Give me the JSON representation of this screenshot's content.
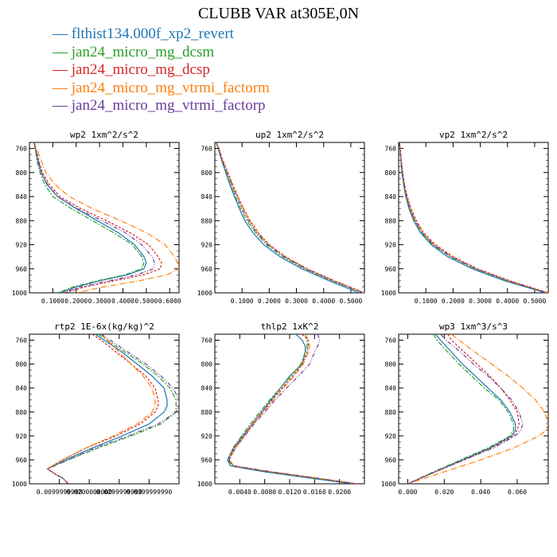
{
  "title": "CLUBB VAR at305E,0N",
  "legend": [
    {
      "marker": "—",
      "label": "flthist134.000f_xp2_revert",
      "color": "#1f77b4"
    },
    {
      "marker": "—",
      "label": "jan24_micro_mg_dcsm",
      "color": "#2ca02c"
    },
    {
      "marker": "—",
      "label": "jan24_micro_mg_dcsp",
      "color": "#d62728"
    },
    {
      "marker": "—",
      "label": "jan24_micro_mg_vtrmi_factorm",
      "color": "#ff7f0e"
    },
    {
      "marker": "—",
      "label": "jan24_micro_mg_vtrmi_factorp",
      "color": "#6a3d9a"
    }
  ],
  "chart_data": [
    {
      "type": "line",
      "title": "wp2  1xm^2/s^2",
      "ylim": [
        1000,
        750
      ],
      "yticks": [
        "760",
        "800",
        "840",
        "880",
        "920",
        "960",
        "1000"
      ],
      "xlim": [
        0,
        0.64
      ],
      "xticks": [
        "0.1000",
        "0.2000",
        "0.3000",
        "0.4000",
        "0.5000",
        "0.6000"
      ],
      "xtick_values": [
        0.1,
        0.2,
        0.3,
        0.4,
        0.5,
        0.6
      ],
      "y": [
        750,
        760,
        780,
        800,
        820,
        840,
        860,
        880,
        900,
        920,
        940,
        950,
        960,
        970,
        980,
        990,
        1000
      ],
      "series": [
        {
          "values": [
            0.02,
            0.025,
            0.035,
            0.05,
            0.075,
            0.12,
            0.2,
            0.29,
            0.38,
            0.45,
            0.49,
            0.5,
            0.49,
            0.42,
            0.3,
            0.2,
            0.13
          ]
        },
        {
          "values": [
            0.02,
            0.025,
            0.032,
            0.045,
            0.065,
            0.1,
            0.18,
            0.27,
            0.36,
            0.44,
            0.48,
            0.49,
            0.48,
            0.41,
            0.29,
            0.19,
            0.12
          ]
        },
        {
          "values": [
            0.02,
            0.027,
            0.04,
            0.055,
            0.085,
            0.13,
            0.22,
            0.33,
            0.43,
            0.51,
            0.55,
            0.565,
            0.56,
            0.49,
            0.36,
            0.24,
            0.15
          ]
        },
        {
          "values": [
            0.02,
            0.03,
            0.05,
            0.07,
            0.11,
            0.17,
            0.27,
            0.39,
            0.5,
            0.58,
            0.62,
            0.635,
            0.64,
            0.59,
            0.47,
            0.32,
            0.2
          ]
        },
        {
          "values": [
            0.02,
            0.025,
            0.038,
            0.05,
            0.078,
            0.12,
            0.205,
            0.31,
            0.41,
            0.48,
            0.525,
            0.535,
            0.53,
            0.46,
            0.34,
            0.22,
            0.14
          ]
        }
      ]
    },
    {
      "type": "line",
      "title": "up2  1xm^2/s^2",
      "ylim": [
        1000,
        750
      ],
      "yticks": [
        "760",
        "800",
        "840",
        "880",
        "920",
        "960",
        "1000"
      ],
      "xlim": [
        0,
        0.55
      ],
      "xticks": [
        "0.1000",
        "0.2000",
        "0.3000",
        "0.4000",
        "0.5000"
      ],
      "xtick_values": [
        0.1,
        0.2,
        0.3,
        0.4,
        0.5
      ],
      "y": [
        750,
        760,
        780,
        800,
        820,
        840,
        860,
        880,
        900,
        920,
        940,
        960,
        980,
        1000
      ],
      "series": [
        {
          "values": [
            0.005,
            0.012,
            0.025,
            0.04,
            0.055,
            0.072,
            0.09,
            0.11,
            0.14,
            0.18,
            0.24,
            0.32,
            0.42,
            0.53
          ]
        },
        {
          "values": [
            0.005,
            0.012,
            0.026,
            0.042,
            0.058,
            0.075,
            0.095,
            0.118,
            0.15,
            0.19,
            0.25,
            0.33,
            0.43,
            0.545
          ]
        },
        {
          "values": [
            0.005,
            0.015,
            0.03,
            0.048,
            0.066,
            0.085,
            0.106,
            0.13,
            0.16,
            0.2,
            0.26,
            0.34,
            0.44,
            0.55
          ]
        },
        {
          "values": [
            0.005,
            0.014,
            0.028,
            0.046,
            0.064,
            0.083,
            0.104,
            0.128,
            0.158,
            0.198,
            0.258,
            0.338,
            0.438,
            0.548
          ]
        },
        {
          "values": [
            0.005,
            0.013,
            0.027,
            0.044,
            0.062,
            0.08,
            0.1,
            0.124,
            0.154,
            0.195,
            0.255,
            0.335,
            0.435,
            0.545
          ]
        }
      ]
    },
    {
      "type": "line",
      "title": "vp2  1xm^2/s^2",
      "ylim": [
        1000,
        750
      ],
      "yticks": [
        "760",
        "800",
        "840",
        "880",
        "920",
        "960",
        "1000"
      ],
      "xlim": [
        0,
        0.55
      ],
      "xticks": [
        "0.1000",
        "0.2000",
        "0.3000",
        "0.4000",
        "0.5000"
      ],
      "xtick_values": [
        0.1,
        0.2,
        0.3,
        0.4,
        0.5
      ],
      "y": [
        750,
        760,
        780,
        800,
        820,
        840,
        860,
        880,
        900,
        920,
        940,
        960,
        980,
        1000
      ],
      "series": [
        {
          "values": [
            0.003,
            0.005,
            0.008,
            0.012,
            0.018,
            0.026,
            0.038,
            0.055,
            0.08,
            0.12,
            0.18,
            0.27,
            0.39,
            0.54
          ]
        },
        {
          "values": [
            0.003,
            0.005,
            0.008,
            0.013,
            0.019,
            0.028,
            0.04,
            0.058,
            0.083,
            0.125,
            0.19,
            0.28,
            0.4,
            0.545
          ]
        },
        {
          "values": [
            0.003,
            0.006,
            0.01,
            0.015,
            0.022,
            0.032,
            0.046,
            0.065,
            0.092,
            0.135,
            0.2,
            0.29,
            0.41,
            0.55
          ]
        },
        {
          "values": [
            0.003,
            0.006,
            0.009,
            0.014,
            0.021,
            0.03,
            0.044,
            0.062,
            0.089,
            0.13,
            0.195,
            0.285,
            0.405,
            0.548
          ]
        },
        {
          "values": [
            0.003,
            0.005,
            0.009,
            0.014,
            0.02,
            0.029,
            0.042,
            0.06,
            0.087,
            0.128,
            0.193,
            0.283,
            0.403,
            0.546
          ]
        }
      ]
    },
    {
      "type": "line",
      "title": "rtp2  1E-6x(kg/kg)^2",
      "ylim": [
        1000,
        750
      ],
      "yticks": [
        "760",
        "800",
        "840",
        "880",
        "920",
        "960",
        "1000"
      ],
      "xlim": [
        0,
        0.05
      ],
      "xticks": [
        "0.0099999998",
        "0.0200000000",
        "0.0299999990",
        "0.0399999990"
      ],
      "xtick_values": [
        0.01,
        0.02,
        0.03,
        0.04
      ],
      "y": [
        750,
        760,
        780,
        800,
        820,
        840,
        860,
        870,
        880,
        900,
        920,
        940,
        960,
        975,
        985,
        990,
        1000
      ],
      "series": [
        {
          "values": [
            0.022,
            0.025,
            0.031,
            0.036,
            0.041,
            0.045,
            0.046,
            0.046,
            0.045,
            0.04,
            0.031,
            0.021,
            0.012,
            0.006,
            0.009,
            0.011,
            0.013
          ]
        },
        {
          "values": [
            0.023,
            0.026,
            0.032,
            0.038,
            0.043,
            0.047,
            0.049,
            0.049,
            0.049,
            0.044,
            0.034,
            0.023,
            0.013,
            0.006,
            0.009,
            0.011,
            0.013
          ]
        },
        {
          "values": [
            0.021,
            0.024,
            0.029,
            0.034,
            0.039,
            0.042,
            0.043,
            0.043,
            0.042,
            0.037,
            0.029,
            0.019,
            0.011,
            0.006,
            0.009,
            0.011,
            0.013
          ]
        },
        {
          "values": [
            0.024,
            0.026,
            0.03,
            0.034,
            0.038,
            0.041,
            0.042,
            0.042,
            0.041,
            0.036,
            0.028,
            0.019,
            0.011,
            0.006,
            0.009,
            0.011,
            0.013
          ]
        },
        {
          "values": [
            0.024,
            0.027,
            0.033,
            0.039,
            0.044,
            0.048,
            0.05,
            0.05,
            0.049,
            0.043,
            0.033,
            0.022,
            0.013,
            0.006,
            0.009,
            0.011,
            0.013
          ]
        }
      ]
    },
    {
      "type": "line",
      "title": "thlp2  1xK^2",
      "ylim": [
        1000,
        750
      ],
      "yticks": [
        "760",
        "800",
        "840",
        "880",
        "920",
        "960",
        "1000"
      ],
      "xlim": [
        0,
        0.024
      ],
      "xticks": [
        "0.0040",
        "0.0080",
        "0.0120",
        "0.0160",
        "0.0200"
      ],
      "xtick_values": [
        0.004,
        0.008,
        0.012,
        0.016,
        0.02
      ],
      "y": [
        750,
        760,
        770,
        780,
        800,
        820,
        840,
        860,
        880,
        900,
        920,
        940,
        960,
        970,
        980,
        990,
        1000
      ],
      "series": [
        {
          "values": [
            0.013,
            0.014,
            0.0145,
            0.0145,
            0.014,
            0.012,
            0.0105,
            0.009,
            0.0075,
            0.006,
            0.0045,
            0.003,
            0.002,
            0.0025,
            0.008,
            0.015,
            0.022
          ]
        },
        {
          "values": [
            0.0145,
            0.0148,
            0.0148,
            0.0145,
            0.0138,
            0.0122,
            0.0105,
            0.0088,
            0.0072,
            0.0057,
            0.0043,
            0.0029,
            0.0021,
            0.0028,
            0.0085,
            0.0155,
            0.0225
          ]
        },
        {
          "values": [
            0.014,
            0.015,
            0.015,
            0.0148,
            0.014,
            0.0125,
            0.0108,
            0.0092,
            0.0076,
            0.006,
            0.0046,
            0.0031,
            0.0022,
            0.003,
            0.009,
            0.016,
            0.0228
          ]
        },
        {
          "values": [
            0.0145,
            0.015,
            0.0152,
            0.015,
            0.0142,
            0.0127,
            0.011,
            0.0094,
            0.0078,
            0.0062,
            0.0048,
            0.0033,
            0.0023,
            0.0031,
            0.0092,
            0.0162,
            0.023
          ]
        },
        {
          "values": [
            0.0165,
            0.0168,
            0.0165,
            0.016,
            0.0152,
            0.0134,
            0.0115,
            0.0097,
            0.008,
            0.0063,
            0.0048,
            0.0033,
            0.0023,
            0.003,
            0.009,
            0.016,
            0.0228
          ]
        }
      ]
    },
    {
      "type": "line",
      "title": "wp3  1xm^3/s^3",
      "ylim": [
        1000,
        750
      ],
      "yticks": [
        "760",
        "800",
        "840",
        "880",
        "920",
        "960",
        "1000"
      ],
      "xlim": [
        -0.005,
        0.077
      ],
      "xticks": [
        "0.000",
        "0.020",
        "0.040",
        "0.060"
      ],
      "xtick_values": [
        0,
        0.02,
        0.04,
        0.06
      ],
      "y": [
        750,
        760,
        780,
        800,
        820,
        840,
        860,
        880,
        900,
        910,
        920,
        940,
        960,
        980,
        1000
      ],
      "series": [
        {
          "values": [
            0.015,
            0.018,
            0.024,
            0.03,
            0.037,
            0.044,
            0.051,
            0.056,
            0.059,
            0.059,
            0.057,
            0.045,
            0.03,
            0.015,
            0.0
          ]
        },
        {
          "values": [
            0.014,
            0.016,
            0.022,
            0.028,
            0.035,
            0.042,
            0.05,
            0.055,
            0.058,
            0.058,
            0.056,
            0.044,
            0.029,
            0.014,
            0.0
          ]
        },
        {
          "values": [
            0.022,
            0.024,
            0.031,
            0.038,
            0.045,
            0.051,
            0.056,
            0.06,
            0.061,
            0.06,
            0.058,
            0.046,
            0.031,
            0.015,
            0.0
          ]
        },
        {
          "values": [
            0.024,
            0.028,
            0.037,
            0.046,
            0.055,
            0.063,
            0.07,
            0.075,
            0.077,
            0.076,
            0.072,
            0.058,
            0.04,
            0.02,
            0.0
          ]
        },
        {
          "values": [
            0.018,
            0.021,
            0.029,
            0.036,
            0.044,
            0.051,
            0.057,
            0.061,
            0.063,
            0.062,
            0.059,
            0.047,
            0.031,
            0.015,
            0.0
          ]
        }
      ]
    }
  ]
}
